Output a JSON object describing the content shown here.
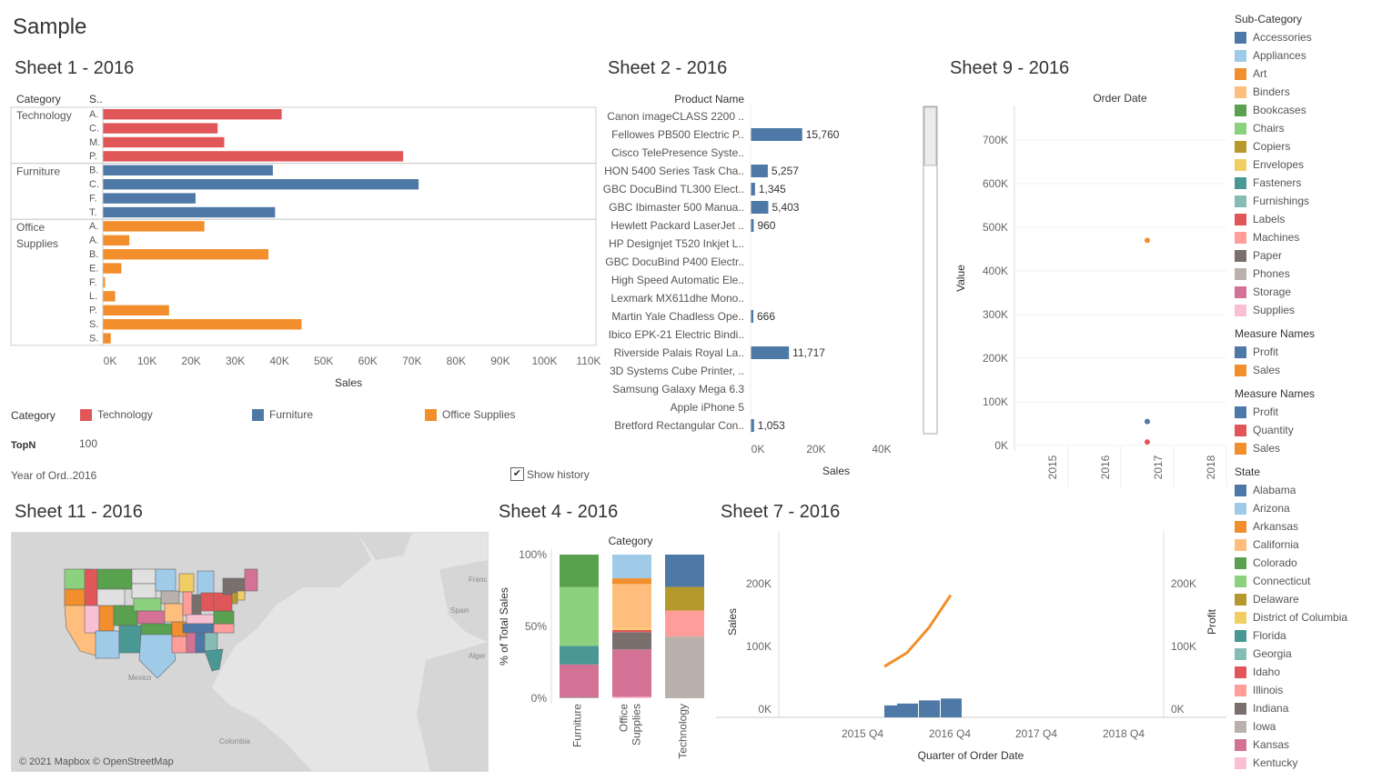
{
  "dashboard_title": "Sample",
  "sheet1": {
    "title": "Sheet 1 - 2016",
    "col1": "Category",
    "col2": "S..",
    "xlabel": "Sales",
    "ticks": [
      "0K",
      "10K",
      "20K",
      "30K",
      "40K",
      "50K",
      "60K",
      "70K",
      "80K",
      "90K",
      "100K",
      "110K"
    ],
    "legend_label": "Category",
    "legend": [
      {
        "name": "Technology",
        "color": "#e15759"
      },
      {
        "name": "Furniture",
        "color": "#4e79a7"
      },
      {
        "name": "Office Supplies",
        "color": "#f28e2b"
      }
    ],
    "topn_label": "TopN",
    "topn_value": "100",
    "year_label": "Year of Ord..",
    "year_value": "2016",
    "show_history": "Show history"
  },
  "sheet2": {
    "title": "Sheet 2 - 2016",
    "header": "Product Name",
    "xlabel": "Sales",
    "ticks": [
      "0K",
      "20K",
      "40K"
    ]
  },
  "sheet9": {
    "title": "Sheet 9 - 2016",
    "header": "Order Date",
    "ylabel": "Value",
    "yticks": [
      "0K",
      "100K",
      "200K",
      "300K",
      "400K",
      "500K",
      "600K",
      "700K"
    ],
    "xticks": [
      "2015",
      "2016",
      "2017",
      "2018"
    ]
  },
  "sheet11": {
    "title": "Sheet 11 - 2016",
    "attribution": "© 2021 Mapbox © OpenStreetMap",
    "labels": {
      "mexico": "Mexico",
      "spain": "Spain",
      "france": "Franc",
      "algeria": "Alger",
      "colombia": "Colombia"
    }
  },
  "sheet4": {
    "title": "Sheet 4 - 2016",
    "header": "Category",
    "ylabel": "% of Total Sales",
    "yticks": [
      "0%",
      "50%",
      "100%"
    ]
  },
  "sheet7": {
    "title": "Sheet 7 - 2016",
    "ylabel_left": "Sales",
    "ylabel_right": "Profit",
    "yticks_left": [
      "0K",
      "100K",
      "200K"
    ],
    "yticks_right": [
      "0K",
      "100K",
      "200K"
    ],
    "xlabel": "Quarter of Order Date",
    "xticks": [
      "2015 Q4",
      "2016 Q4",
      "2017 Q4",
      "2018 Q4"
    ]
  },
  "legends": {
    "subcategory": {
      "title": "Sub-Category",
      "items": [
        {
          "name": "Accessories",
          "color": "#4e79a7"
        },
        {
          "name": "Appliances",
          "color": "#a0cbe8"
        },
        {
          "name": "Art",
          "color": "#f28e2b"
        },
        {
          "name": "Binders",
          "color": "#ffbe7d"
        },
        {
          "name": "Bookcases",
          "color": "#59a14f"
        },
        {
          "name": "Chairs",
          "color": "#8cd17d"
        },
        {
          "name": "Copiers",
          "color": "#b6992d"
        },
        {
          "name": "Envelopes",
          "color": "#f1ce63"
        },
        {
          "name": "Fasteners",
          "color": "#499894"
        },
        {
          "name": "Furnishings",
          "color": "#86bcb6"
        },
        {
          "name": "Labels",
          "color": "#e15759"
        },
        {
          "name": "Machines",
          "color": "#ff9d9a"
        },
        {
          "name": "Paper",
          "color": "#79706e"
        },
        {
          "name": "Phones",
          "color": "#bab0ac"
        },
        {
          "name": "Storage",
          "color": "#d37295"
        },
        {
          "name": "Supplies",
          "color": "#fabfd2"
        }
      ]
    },
    "measure1": {
      "title": "Measure Names",
      "items": [
        {
          "name": "Profit",
          "color": "#4e79a7"
        },
        {
          "name": "Sales",
          "color": "#f28e2b"
        }
      ]
    },
    "measure2": {
      "title": "Measure Names",
      "items": [
        {
          "name": "Profit",
          "color": "#4e79a7"
        },
        {
          "name": "Quantity",
          "color": "#e15759"
        },
        {
          "name": "Sales",
          "color": "#f28e2b"
        }
      ]
    },
    "state": {
      "title": "State",
      "items": [
        {
          "name": "Alabama",
          "color": "#4e79a7"
        },
        {
          "name": "Arizona",
          "color": "#a0cbe8"
        },
        {
          "name": "Arkansas",
          "color": "#f28e2b"
        },
        {
          "name": "California",
          "color": "#ffbe7d"
        },
        {
          "name": "Colorado",
          "color": "#59a14f"
        },
        {
          "name": "Connecticut",
          "color": "#8cd17d"
        },
        {
          "name": "Delaware",
          "color": "#b6992d"
        },
        {
          "name": "District of Columbia",
          "color": "#f1ce63"
        },
        {
          "name": "Florida",
          "color": "#499894"
        },
        {
          "name": "Georgia",
          "color": "#86bcb6"
        },
        {
          "name": "Idaho",
          "color": "#e15759"
        },
        {
          "name": "Illinois",
          "color": "#ff9d9a"
        },
        {
          "name": "Indiana",
          "color": "#79706e"
        },
        {
          "name": "Iowa",
          "color": "#bab0ac"
        },
        {
          "name": "Kansas",
          "color": "#d37295"
        },
        {
          "name": "Kentucky",
          "color": "#fabfd2"
        }
      ]
    }
  },
  "chart_data": [
    {
      "type": "bar",
      "title": "Sheet 1 - 2016",
      "xlabel": "Sales",
      "xlim": [
        0,
        110000
      ],
      "groups": [
        {
          "category": "Technology",
          "color": "#e15759",
          "rows": [
            {
              "label": "A.",
              "value": 40500
            },
            {
              "label": "C.",
              "value": 26000
            },
            {
              "label": "M.",
              "value": 27500
            },
            {
              "label": "P.",
              "value": 68000
            }
          ]
        },
        {
          "category": "Furniture",
          "color": "#4e79a7",
          "rows": [
            {
              "label": "B.",
              "value": 38500
            },
            {
              "label": "C.",
              "value": 71500
            },
            {
              "label": "F.",
              "value": 21000
            },
            {
              "label": "T.",
              "value": 39000
            }
          ]
        },
        {
          "category": "Office Supplies",
          "color": "#f28e2b",
          "rows": [
            {
              "label": "A.",
              "value": 23000
            },
            {
              "label": "A.",
              "value": 6000
            },
            {
              "label": "B.",
              "value": 37500
            },
            {
              "label": "E.",
              "value": 4200
            },
            {
              "label": "F.",
              "value": 500
            },
            {
              "label": "L.",
              "value": 2800
            },
            {
              "label": "P.",
              "value": 15000
            },
            {
              "label": "S.",
              "value": 45000
            },
            {
              "label": "S.",
              "value": 1800
            }
          ]
        }
      ]
    },
    {
      "type": "bar",
      "title": "Sheet 2 - 2016",
      "xlabel": "Sales",
      "xlim": [
        0,
        45000
      ],
      "rows": [
        {
          "name": "Canon imageCLASS 2200 ..",
          "value": null,
          "label": ""
        },
        {
          "name": "Fellowes PB500 Electric P..",
          "value": 15760,
          "label": "15,760"
        },
        {
          "name": "Cisco TelePresence Syste..",
          "value": null,
          "label": ""
        },
        {
          "name": "HON 5400 Series Task Cha..",
          "value": 5257,
          "label": "5,257"
        },
        {
          "name": "GBC DocuBind TL300 Elect..",
          "value": 1345,
          "label": "1,345"
        },
        {
          "name": "GBC Ibimaster 500 Manua..",
          "value": 5403,
          "label": "5,403"
        },
        {
          "name": "Hewlett Packard LaserJet ..",
          "value": 960,
          "label": "960"
        },
        {
          "name": "HP Designjet T520 Inkjet L..",
          "value": null,
          "label": ""
        },
        {
          "name": "GBC DocuBind P400 Electr..",
          "value": null,
          "label": ""
        },
        {
          "name": "High Speed Automatic Ele..",
          "value": null,
          "label": ""
        },
        {
          "name": "Lexmark MX611dhe Mono..",
          "value": null,
          "label": ""
        },
        {
          "name": "Martin Yale Chadless Ope..",
          "value": 666,
          "label": "666"
        },
        {
          "name": "Ibico EPK-21 Electric Bindi..",
          "value": null,
          "label": ""
        },
        {
          "name": "Riverside Palais Royal La..",
          "value": 11717,
          "label": "11,717"
        },
        {
          "name": "3D Systems Cube Printer, ..",
          "value": null,
          "label": ""
        },
        {
          "name": "Samsung Galaxy Mega 6.3",
          "value": null,
          "label": ""
        },
        {
          "name": "Apple iPhone 5",
          "value": null,
          "label": ""
        },
        {
          "name": "Bretford Rectangular Con..",
          "value": 1053,
          "label": "1,053"
        }
      ]
    },
    {
      "type": "scatter",
      "title": "Sheet 9 - 2016",
      "ylabel": "Value",
      "ylim": [
        0,
        750000
      ],
      "x": [
        "2015",
        "2016",
        "2017",
        "2018"
      ],
      "series": [
        {
          "name": "Sales",
          "color": "#f28e2b",
          "points": [
            {
              "x": "2016",
              "y": 470000
            }
          ]
        },
        {
          "name": "Profit",
          "color": "#4e79a7",
          "points": [
            {
              "x": "2016",
              "y": 55000
            }
          ]
        },
        {
          "name": "Quantity",
          "color": "#e15759",
          "points": [
            {
              "x": "2016",
              "y": 8000
            }
          ]
        }
      ]
    },
    {
      "type": "bar",
      "title": "Sheet 4 - 2016",
      "ylabel": "% of Total Sales",
      "stacked": true,
      "categories": [
        "Furniture",
        "Office Supplies",
        "Technology"
      ],
      "stacks": [
        {
          "category": "Furniture",
          "segments": [
            {
              "sub": "Furnishings",
              "value": 0.5
            },
            {
              "sub": "Storage",
              "value": 23
            },
            {
              "sub": "Fasteners",
              "value": 13
            },
            {
              "sub": "Chairs",
              "value": 41
            },
            {
              "sub": "Bookcases",
              "value": 22.5
            }
          ]
        },
        {
          "category": "Office Supplies",
          "segments": [
            {
              "sub": "Supplies",
              "value": 1
            },
            {
              "sub": "Storage",
              "value": 33
            },
            {
              "sub": "Paper",
              "value": 12
            },
            {
              "sub": "Labels",
              "value": 1.5
            },
            {
              "sub": "Envelopes",
              "value": 1
            },
            {
              "sub": "Binders",
              "value": 31
            },
            {
              "sub": "Art",
              "value": 4
            },
            {
              "sub": "Appliances",
              "value": 16.5
            }
          ]
        },
        {
          "category": "Technology",
          "segments": [
            {
              "sub": "Phones",
              "value": 43
            },
            {
              "sub": "Machines",
              "value": 18
            },
            {
              "sub": "Copiers",
              "value": 16.5
            },
            {
              "sub": "Accessories",
              "value": 22.5
            }
          ]
        }
      ]
    },
    {
      "type": "line",
      "title": "Sheet 7 - 2016",
      "xlabel": "Quarter of Order Date",
      "ylabel": "Sales",
      "y2label": "Profit",
      "ylim": [
        0,
        250000
      ],
      "series": [
        {
          "name": "Sales",
          "color": "#f28e2b",
          "kind": "line",
          "x": [
            "2016 Q1",
            "2016 Q2",
            "2016 Q3",
            "2016 Q4"
          ],
          "values": [
            68000,
            90000,
            130000,
            182000
          ]
        },
        {
          "name": "Profit",
          "color": "#4e79a7",
          "kind": "bar",
          "x": [
            "2016 Q1",
            "2016 Q2",
            "2016 Q3",
            "2016 Q4"
          ],
          "values": [
            6000,
            9000,
            14000,
            17000
          ]
        }
      ]
    }
  ]
}
